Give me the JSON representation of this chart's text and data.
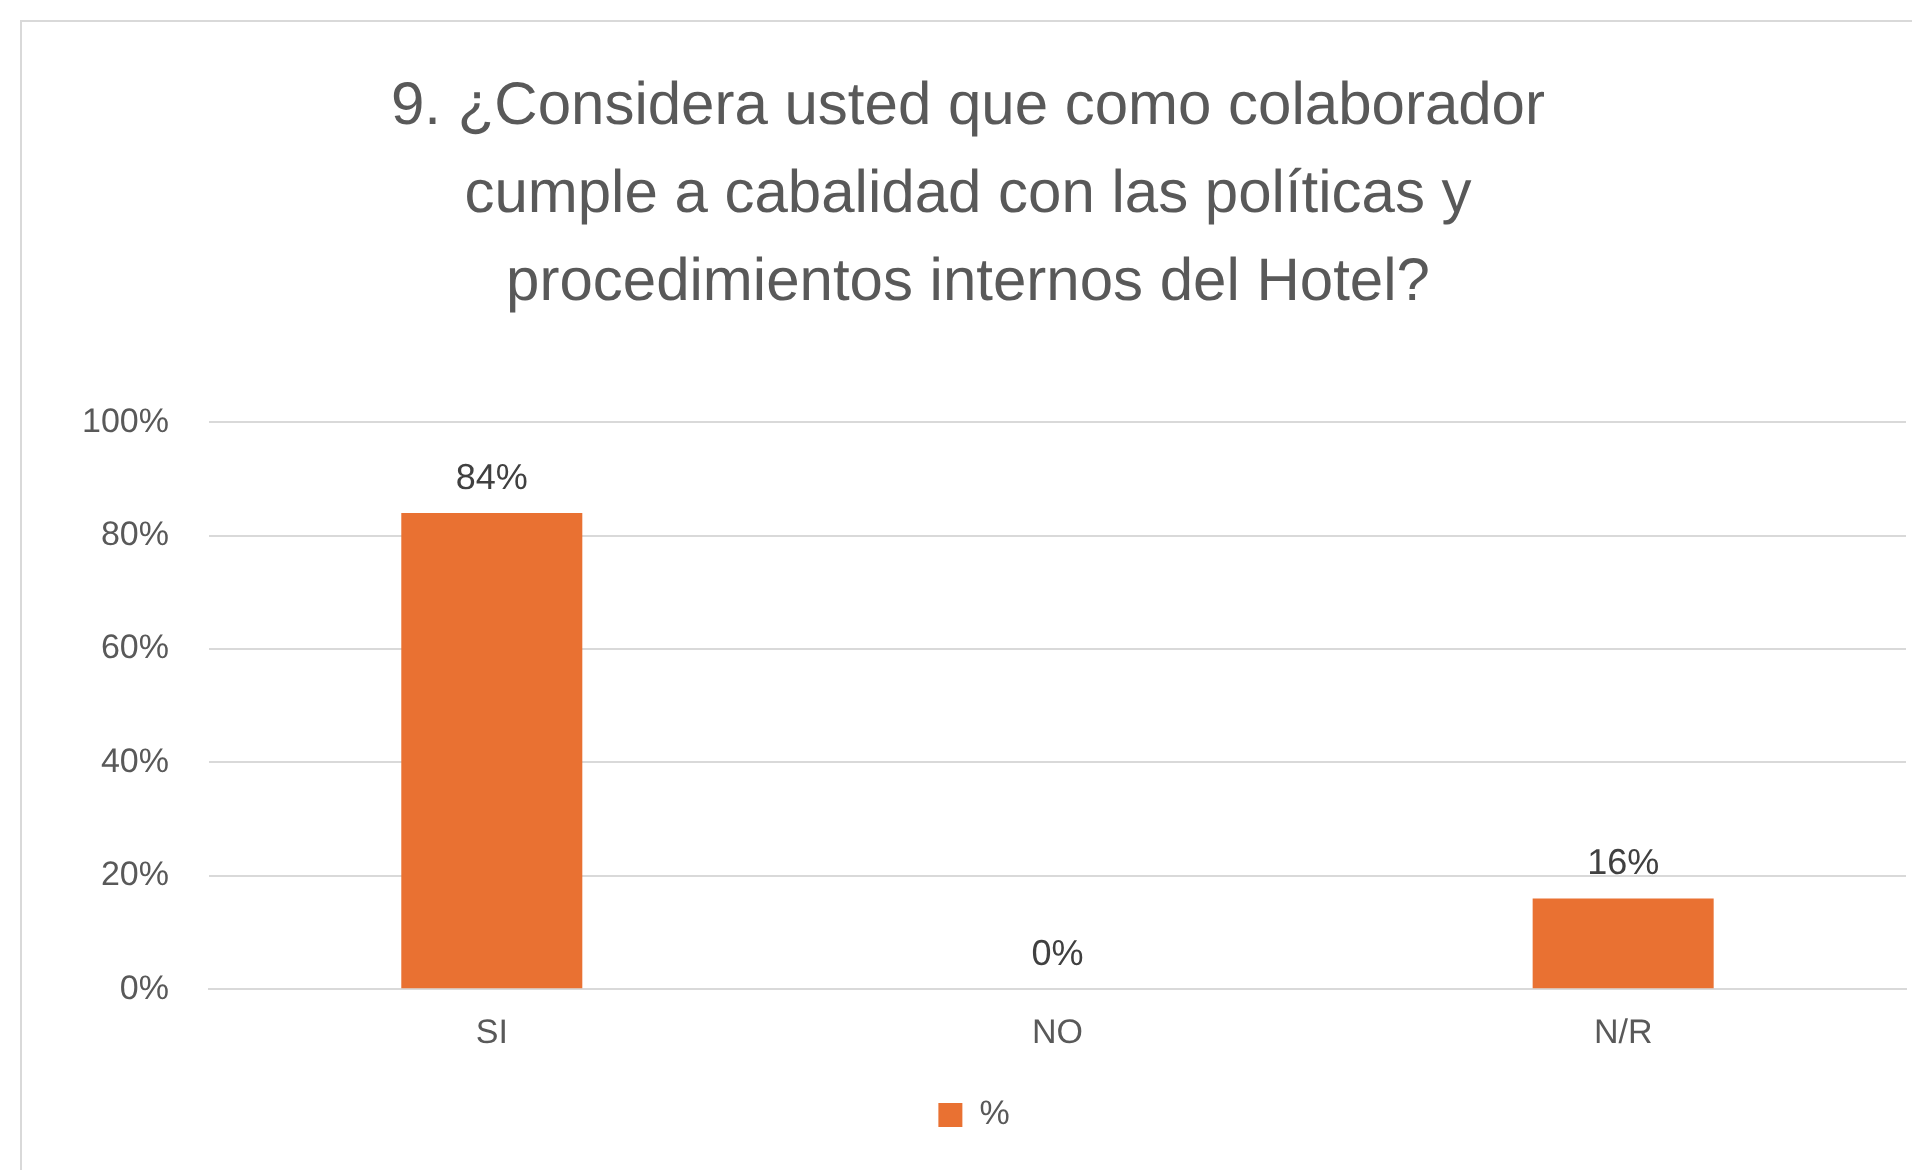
{
  "chart_data": {
    "type": "bar",
    "title": "9. ¿Considera usted que como colaborador cumple a cabalidad con las políticas y procedimientos internos del Hotel?",
    "categories": [
      "SI",
      "NO",
      "N/R"
    ],
    "series": [
      {
        "name": "%",
        "color": "#e97132",
        "values": [
          84,
          0,
          16
        ],
        "value_labels": [
          "84%",
          "0%",
          "16%"
        ]
      }
    ],
    "ylim": [
      0,
      100
    ],
    "yticks": [
      {
        "value": 0,
        "label": "0%"
      },
      {
        "value": 20,
        "label": "20%"
      },
      {
        "value": 40,
        "label": "40%"
      },
      {
        "value": 60,
        "label": "60%"
      },
      {
        "value": 80,
        "label": "80%"
      },
      {
        "value": 100,
        "label": "100%"
      }
    ],
    "grid": "y",
    "legend": "bottom"
  }
}
